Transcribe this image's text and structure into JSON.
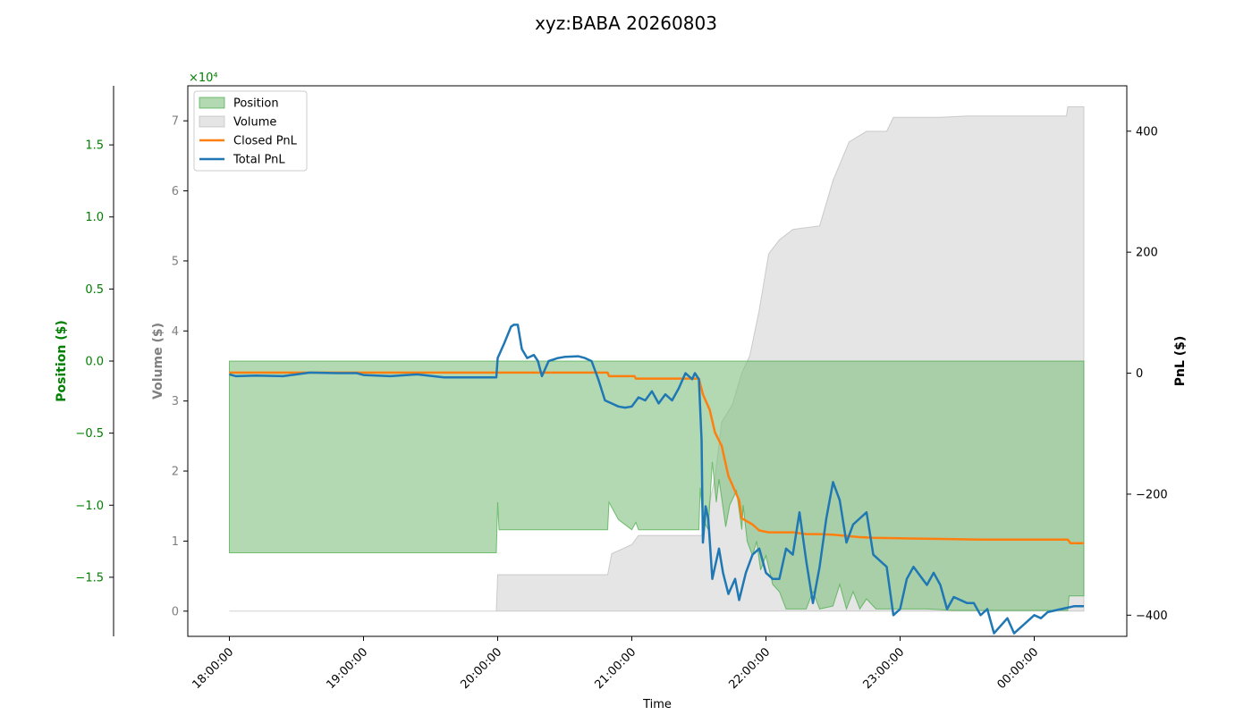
{
  "chart_data": {
    "type": "line",
    "title": "xyz:BABA 20260803",
    "xlabel": "Time",
    "x_ticks": [
      "18:00:00",
      "19:00:00",
      "20:00:00",
      "21:00:00",
      "22:00:00",
      "23:00:00",
      "00:00:00"
    ],
    "x_range_hours": [
      17.69,
      24.69
    ],
    "position_axis": {
      "label": "Position ($)",
      "color": "#008000",
      "multiplier": "×10⁴",
      "ticks": [
        1.5,
        1.0,
        0.5,
        0.0,
        -0.5,
        -1.0,
        -1.5
      ],
      "tick_labels": [
        "1.5",
        "1.0",
        "0.5",
        "0.0",
        "−0.5",
        "−1.0",
        "−1.5"
      ],
      "ylim": [
        -1.91,
        1.91
      ]
    },
    "volume_axis": {
      "label": "Volume ($)",
      "color": "#808080",
      "ticks": [
        0,
        1,
        2,
        3,
        4,
        5,
        6,
        7
      ],
      "tick_labels": [
        "0",
        "1",
        "2",
        "3",
        "4",
        "5",
        "6",
        "7"
      ],
      "ylim": [
        -0.36,
        7.5
      ]
    },
    "pnl_axis": {
      "label": "PnL ($)",
      "color": "#000000",
      "ticks": [
        400,
        200,
        0,
        -200,
        -400
      ],
      "tick_labels": [
        "400",
        "200",
        "0",
        "−200",
        "−400"
      ],
      "ylim": [
        -435,
        475
      ]
    },
    "legend": {
      "placement": "upper-left",
      "entries": [
        "Position",
        "Volume",
        "Closed PnL",
        "Total PnL"
      ]
    },
    "colors": {
      "position_fill": "#7fc07f",
      "position_edge": "#2ca02c",
      "volume_fill": "#d3d3d3",
      "closed_pnl": "#ff7f0e",
      "total_pnl": "#1f77b4"
    },
    "series": [
      {
        "name": "Position",
        "axis": "position",
        "style": "area",
        "points": [
          [
            18.0,
            0
          ],
          [
            18.0,
            -1.33
          ],
          [
            19.99,
            -1.33
          ],
          [
            20.0,
            -0.98
          ],
          [
            20.01,
            -1.17
          ],
          [
            20.1,
            -1.17
          ],
          [
            20.2,
            -1.17
          ],
          [
            20.5,
            -1.17
          ],
          [
            20.82,
            -1.17
          ],
          [
            20.83,
            -0.98
          ],
          [
            20.9,
            -1.1
          ],
          [
            21.0,
            -1.17
          ],
          [
            21.03,
            -1.12
          ],
          [
            21.05,
            -1.17
          ],
          [
            21.3,
            -1.17
          ],
          [
            21.5,
            -1.17
          ],
          [
            21.51,
            -0.88
          ],
          [
            21.53,
            -1.1
          ],
          [
            21.57,
            -1.17
          ],
          [
            21.6,
            -0.7
          ],
          [
            21.63,
            -0.98
          ],
          [
            21.65,
            -0.82
          ],
          [
            21.7,
            -1.15
          ],
          [
            21.73,
            -1.0
          ],
          [
            21.78,
            -0.9
          ],
          [
            21.82,
            -1.17
          ],
          [
            21.83,
            -1.0
          ],
          [
            21.86,
            -1.25
          ],
          [
            21.9,
            -1.35
          ],
          [
            21.93,
            -1.25
          ],
          [
            21.96,
            -1.45
          ],
          [
            22.0,
            -1.35
          ],
          [
            22.05,
            -1.55
          ],
          [
            22.1,
            -1.6
          ],
          [
            22.15,
            -1.72
          ],
          [
            22.2,
            -1.72
          ],
          [
            22.3,
            -1.72
          ],
          [
            22.35,
            -1.6
          ],
          [
            22.4,
            -1.72
          ],
          [
            22.5,
            -1.7
          ],
          [
            22.55,
            -1.55
          ],
          [
            22.6,
            -1.72
          ],
          [
            22.65,
            -1.6
          ],
          [
            22.7,
            -1.72
          ],
          [
            22.75,
            -1.65
          ],
          [
            22.82,
            -1.72
          ],
          [
            22.9,
            -1.72
          ],
          [
            23.0,
            -1.72
          ],
          [
            23.2,
            -1.72
          ],
          [
            23.4,
            -1.73
          ],
          [
            23.6,
            -1.73
          ],
          [
            23.8,
            -1.73
          ],
          [
            24.0,
            -1.73
          ],
          [
            24.25,
            -1.73
          ],
          [
            24.26,
            -1.63
          ],
          [
            24.37,
            -1.63
          ],
          [
            24.37,
            0
          ]
        ]
      },
      {
        "name": "Volume",
        "axis": "volume",
        "style": "area",
        "points": [
          [
            18.0,
            0
          ],
          [
            19.99,
            0
          ],
          [
            20.0,
            0.52
          ],
          [
            20.82,
            0.52
          ],
          [
            20.85,
            0.82
          ],
          [
            21.0,
            0.95
          ],
          [
            21.05,
            1.08
          ],
          [
            21.52,
            1.08
          ],
          [
            21.55,
            1.3
          ],
          [
            21.62,
            1.9
          ],
          [
            21.67,
            2.7
          ],
          [
            21.75,
            2.95
          ],
          [
            21.82,
            3.4
          ],
          [
            21.88,
            3.65
          ],
          [
            21.95,
            4.3
          ],
          [
            22.02,
            5.1
          ],
          [
            22.1,
            5.3
          ],
          [
            22.2,
            5.45
          ],
          [
            22.4,
            5.5
          ],
          [
            22.5,
            6.15
          ],
          [
            22.62,
            6.7
          ],
          [
            22.75,
            6.85
          ],
          [
            22.9,
            6.85
          ],
          [
            22.95,
            7.05
          ],
          [
            23.3,
            7.05
          ],
          [
            23.5,
            7.07
          ],
          [
            23.8,
            7.07
          ],
          [
            24.0,
            7.07
          ],
          [
            24.24,
            7.07
          ],
          [
            24.25,
            7.2
          ],
          [
            24.37,
            7.2
          ],
          [
            24.37,
            0
          ]
        ]
      },
      {
        "name": "Closed PnL",
        "axis": "pnl",
        "style": "step-line",
        "points": [
          [
            18.0,
            1
          ],
          [
            20.82,
            1
          ],
          [
            20.83,
            -5
          ],
          [
            21.02,
            -5
          ],
          [
            21.03,
            -9
          ],
          [
            21.5,
            -9
          ],
          [
            21.53,
            -35
          ],
          [
            21.58,
            -60
          ],
          [
            21.62,
            -98
          ],
          [
            21.67,
            -120
          ],
          [
            21.72,
            -170
          ],
          [
            21.8,
            -210
          ],
          [
            21.82,
            -240
          ],
          [
            21.9,
            -250
          ],
          [
            21.95,
            -260
          ],
          [
            22.02,
            -263
          ],
          [
            22.2,
            -263
          ],
          [
            22.3,
            -266
          ],
          [
            22.4,
            -266
          ],
          [
            22.5,
            -267
          ],
          [
            22.6,
            -269
          ],
          [
            22.7,
            -271
          ],
          [
            22.8,
            -272
          ],
          [
            23.0,
            -273
          ],
          [
            23.3,
            -274
          ],
          [
            23.6,
            -275
          ],
          [
            24.0,
            -275
          ],
          [
            24.25,
            -275
          ],
          [
            24.27,
            -281
          ],
          [
            24.37,
            -281
          ]
        ]
      },
      {
        "name": "Total PnL",
        "axis": "pnl",
        "style": "line",
        "points": [
          [
            18.0,
            -2
          ],
          [
            18.05,
            -5
          ],
          [
            18.2,
            -4
          ],
          [
            18.4,
            -5
          ],
          [
            18.6,
            1
          ],
          [
            18.8,
            0
          ],
          [
            18.95,
            0
          ],
          [
            19.0,
            -3
          ],
          [
            19.2,
            -5
          ],
          [
            19.4,
            -2
          ],
          [
            19.6,
            -7
          ],
          [
            19.8,
            -7
          ],
          [
            19.99,
            -7
          ],
          [
            20.0,
            25
          ],
          [
            20.05,
            50
          ],
          [
            20.1,
            77
          ],
          [
            20.12,
            80
          ],
          [
            20.15,
            80
          ],
          [
            20.18,
            40
          ],
          [
            20.22,
            25
          ],
          [
            20.27,
            30
          ],
          [
            20.3,
            20
          ],
          [
            20.33,
            -5
          ],
          [
            20.38,
            20
          ],
          [
            20.45,
            25
          ],
          [
            20.5,
            27
          ],
          [
            20.6,
            28
          ],
          [
            20.65,
            25
          ],
          [
            20.7,
            20
          ],
          [
            20.75,
            -10
          ],
          [
            20.8,
            -45
          ],
          [
            20.85,
            -50
          ],
          [
            20.9,
            -55
          ],
          [
            20.95,
            -57
          ],
          [
            21.0,
            -55
          ],
          [
            21.05,
            -40
          ],
          [
            21.1,
            -45
          ],
          [
            21.15,
            -30
          ],
          [
            21.2,
            -50
          ],
          [
            21.25,
            -35
          ],
          [
            21.3,
            -45
          ],
          [
            21.35,
            -25
          ],
          [
            21.4,
            0
          ],
          [
            21.45,
            -10
          ],
          [
            21.47,
            0
          ],
          [
            21.5,
            -10
          ],
          [
            21.52,
            -110
          ],
          [
            21.53,
            -280
          ],
          [
            21.55,
            -220
          ],
          [
            21.57,
            -240
          ],
          [
            21.6,
            -340
          ],
          [
            21.65,
            -290
          ],
          [
            21.68,
            -330
          ],
          [
            21.72,
            -365
          ],
          [
            21.77,
            -340
          ],
          [
            21.8,
            -375
          ],
          [
            21.85,
            -330
          ],
          [
            21.9,
            -300
          ],
          [
            21.95,
            -290
          ],
          [
            22.0,
            -330
          ],
          [
            22.05,
            -340
          ],
          [
            22.1,
            -340
          ],
          [
            22.15,
            -290
          ],
          [
            22.2,
            -300
          ],
          [
            22.25,
            -230
          ],
          [
            22.3,
            -310
          ],
          [
            22.35,
            -380
          ],
          [
            22.4,
            -320
          ],
          [
            22.45,
            -240
          ],
          [
            22.5,
            -180
          ],
          [
            22.55,
            -210
          ],
          [
            22.6,
            -280
          ],
          [
            22.65,
            -250
          ],
          [
            22.7,
            -240
          ],
          [
            22.75,
            -230
          ],
          [
            22.8,
            -300
          ],
          [
            22.85,
            -310
          ],
          [
            22.9,
            -320
          ],
          [
            22.95,
            -400
          ],
          [
            23.0,
            -390
          ],
          [
            23.05,
            -340
          ],
          [
            23.1,
            -320
          ],
          [
            23.2,
            -350
          ],
          [
            23.25,
            -330
          ],
          [
            23.3,
            -350
          ],
          [
            23.35,
            -390
          ],
          [
            23.4,
            -370
          ],
          [
            23.5,
            -380
          ],
          [
            23.55,
            -380
          ],
          [
            23.6,
            -400
          ],
          [
            23.65,
            -390
          ],
          [
            23.7,
            -430
          ],
          [
            23.8,
            -405
          ],
          [
            23.85,
            -430
          ],
          [
            23.95,
            -410
          ],
          [
            24.0,
            -400
          ],
          [
            24.05,
            -405
          ],
          [
            24.1,
            -395
          ],
          [
            24.2,
            -390
          ],
          [
            24.3,
            -385
          ],
          [
            24.37,
            -385
          ]
        ]
      }
    ]
  }
}
